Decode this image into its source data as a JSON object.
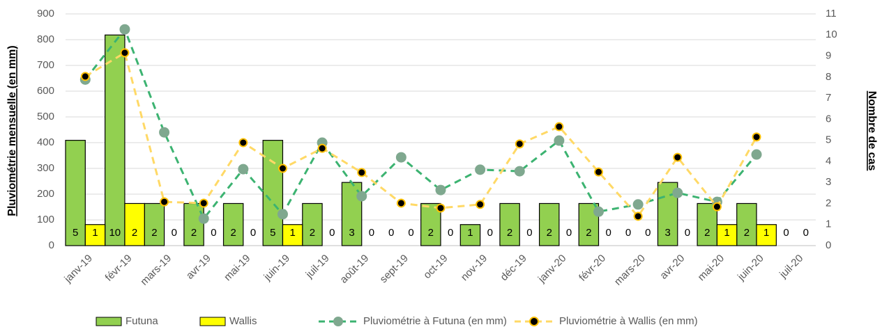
{
  "chart_data": {
    "type": "bar",
    "categories": [
      "janv-19",
      "févr-19",
      "mars-19",
      "avr-19",
      "mai-19",
      "juin-19",
      "juil-19",
      "août-19",
      "sept-19",
      "oct-19",
      "nov-19",
      "déc-19",
      "janv-20",
      "févr-20",
      "mars-20",
      "avr-20",
      "mai-20",
      "juin-20",
      "juil-20"
    ],
    "ylabel": "Pluviométrie mensuelle (en mm)",
    "y2label": "Nombre de cas",
    "ylim": [
      0,
      900
    ],
    "yticks": [
      0,
      100,
      200,
      300,
      400,
      500,
      600,
      700,
      800,
      900
    ],
    "y2lim": [
      0,
      11
    ],
    "y2ticks": [
      0,
      1,
      2,
      3,
      4,
      5,
      6,
      7,
      8,
      9,
      10,
      11
    ],
    "grid": true,
    "legend": "bottom",
    "series": [
      {
        "name": "Futuna",
        "type": "bar",
        "axis": "y2",
        "color": "#92d050",
        "values": [
          5,
          10,
          2,
          2,
          2,
          5,
          2,
          3,
          0,
          2,
          1,
          2,
          2,
          2,
          0,
          3,
          2,
          2,
          0
        ]
      },
      {
        "name": "Wallis",
        "type": "bar",
        "axis": "y2",
        "color": "#ffff00",
        "values": [
          1,
          2,
          0,
          0,
          0,
          1,
          0,
          0,
          0,
          0,
          0,
          0,
          0,
          0,
          0,
          0,
          1,
          1,
          0
        ]
      },
      {
        "name": "Pluviométrie à Futuna (en mm)",
        "type": "line",
        "color": "#3cb371",
        "values": [
          645,
          840,
          440,
          105,
          297,
          122,
          400,
          192,
          343,
          216,
          295,
          289,
          408,
          132,
          160,
          205,
          170,
          354,
          null
        ]
      },
      {
        "name": "Pluviométrie à Wallis (en mm)",
        "type": "line",
        "color": "#ffd966",
        "values": [
          657,
          749,
          170,
          165,
          400,
          300,
          378,
          284,
          165,
          146,
          160,
          395,
          462,
          286,
          114,
          343,
          151,
          422,
          null
        ]
      }
    ]
  }
}
